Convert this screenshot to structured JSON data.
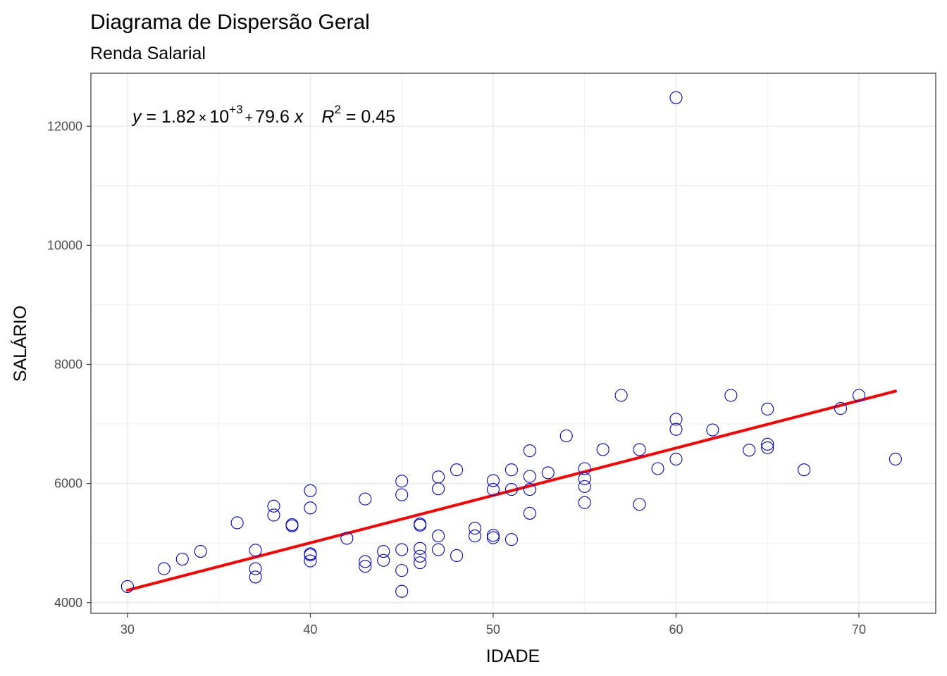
{
  "chart_data": {
    "type": "scatter",
    "title": "Diagrama de Dispersão Geral",
    "subtitle": "Renda Salarial",
    "xlabel": "IDADE",
    "ylabel": "SALÁRIO",
    "xlim": [
      28,
      74.2
    ],
    "ylim": [
      3820,
      12890
    ],
    "x_ticks": [
      30,
      40,
      50,
      60,
      70
    ],
    "y_ticks": [
      4000,
      6000,
      8000,
      10000,
      12000
    ],
    "x_minor": [
      35,
      45,
      55,
      65
    ],
    "y_minor": [
      5000,
      7000,
      9000,
      11000
    ],
    "grid": true,
    "colors": {
      "points": "#0000cd",
      "fit": "#ff0000",
      "grid": "#ebebeb",
      "border": "#333333"
    },
    "equation": {
      "y": "y",
      "eq_a": " = 1.82",
      "times": "×",
      "ten": "10",
      "exp": "+3",
      "plus": "+",
      "slope": "79.6",
      "x": "x",
      "r": "R",
      "r_exp": "2",
      "r2": " = 0.45"
    },
    "fit": {
      "intercept": 1820,
      "slope": 79.6,
      "x_range": [
        30,
        72
      ]
    },
    "points": [
      [
        30,
        4270
      ],
      [
        32,
        4570
      ],
      [
        33,
        4730
      ],
      [
        34,
        4860
      ],
      [
        36,
        5340
      ],
      [
        37,
        4880
      ],
      [
        37,
        4570
      ],
      [
        37,
        4430
      ],
      [
        38,
        5620
      ],
      [
        38,
        5470
      ],
      [
        39,
        5310
      ],
      [
        39,
        5290
      ],
      [
        40,
        5880
      ],
      [
        40,
        5590
      ],
      [
        40,
        4820
      ],
      [
        40,
        4800
      ],
      [
        40,
        4700
      ],
      [
        42,
        5080
      ],
      [
        43,
        5740
      ],
      [
        43,
        4690
      ],
      [
        43,
        4610
      ],
      [
        44,
        4860
      ],
      [
        44,
        4710
      ],
      [
        45,
        6040
      ],
      [
        45,
        5810
      ],
      [
        45,
        4890
      ],
      [
        45,
        4540
      ],
      [
        45,
        4190
      ],
      [
        46,
        5300
      ],
      [
        46,
        4910
      ],
      [
        46,
        4780
      ],
      [
        46,
        4670
      ],
      [
        46,
        5320
      ],
      [
        47,
        6110
      ],
      [
        47,
        5910
      ],
      [
        47,
        5120
      ],
      [
        47,
        4890
      ],
      [
        48,
        6230
      ],
      [
        48,
        4790
      ],
      [
        49,
        5250
      ],
      [
        49,
        5120
      ],
      [
        50,
        6050
      ],
      [
        50,
        5900
      ],
      [
        50,
        5130
      ],
      [
        50,
        5090
      ],
      [
        51,
        6230
      ],
      [
        51,
        5900
      ],
      [
        51,
        5060
      ],
      [
        52,
        6550
      ],
      [
        52,
        6120
      ],
      [
        52,
        5900
      ],
      [
        52,
        5500
      ],
      [
        53,
        6180
      ],
      [
        54,
        6800
      ],
      [
        55,
        6250
      ],
      [
        55,
        6080
      ],
      [
        55,
        5950
      ],
      [
        55,
        5680
      ],
      [
        56,
        6570
      ],
      [
        57,
        7480
      ],
      [
        58,
        6570
      ],
      [
        58,
        5650
      ],
      [
        59,
        6250
      ],
      [
        60,
        12480
      ],
      [
        60,
        7080
      ],
      [
        60,
        6910
      ],
      [
        60,
        6410
      ],
      [
        62,
        6900
      ],
      [
        63,
        7480
      ],
      [
        64,
        6560
      ],
      [
        65,
        7250
      ],
      [
        65,
        6660
      ],
      [
        65,
        6600
      ],
      [
        67,
        6230
      ],
      [
        69,
        7260
      ],
      [
        70,
        7480
      ],
      [
        72,
        6410
      ]
    ]
  }
}
